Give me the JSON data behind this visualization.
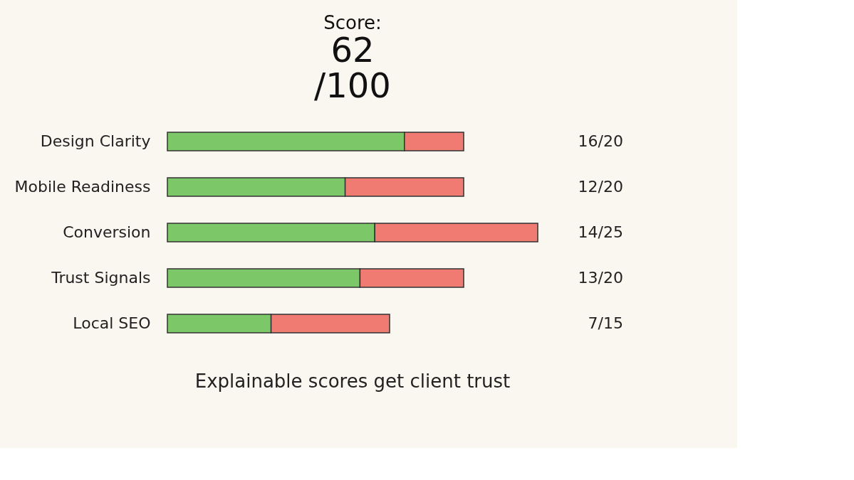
{
  "chart_data": {
    "type": "bar",
    "orientation": "horizontal",
    "stacked": true,
    "title": "Score:",
    "categories": [
      "Design Clarity",
      "Mobile Readiness",
      "Conversion",
      "Trust Signals",
      "Local SEO"
    ],
    "series": [
      {
        "color": "#7cc868",
        "values": [
          16,
          12,
          14,
          13,
          7
        ],
        "value_labels": [
          "16/20",
          "12/20",
          "14/25",
          "13/20",
          "7/15"
        ]
      },
      {
        "color": "#ef7b72",
        "values": [
          4,
          8,
          11,
          7,
          8
        ]
      }
    ],
    "annotations": [
      "62",
      "/100",
      "Explainable scores get client trust"
    ]
  }
}
